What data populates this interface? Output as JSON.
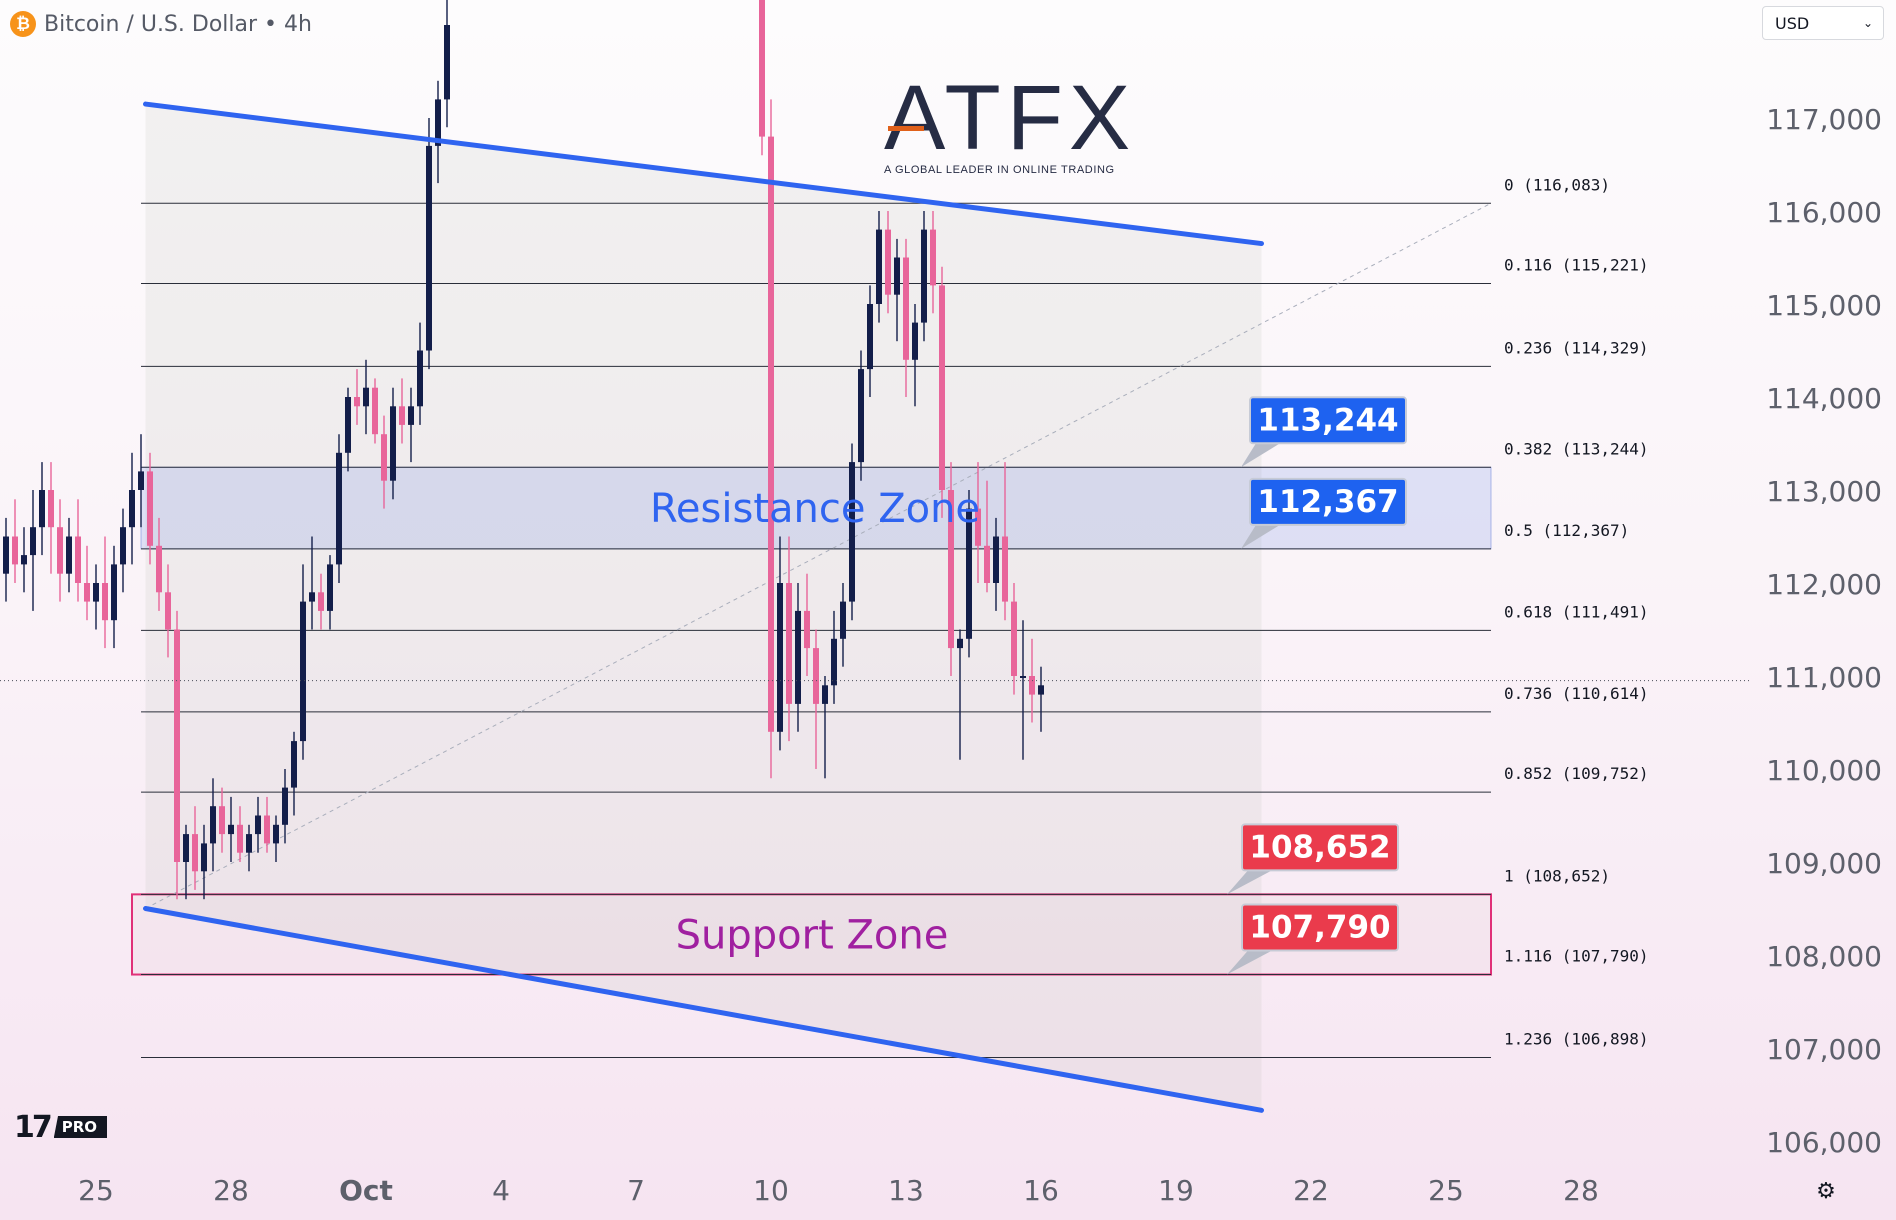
{
  "header": {
    "icon": "bitcoin-icon",
    "symbol_title": "Bitcoin / U.S. Dollar • 4h"
  },
  "currency_select": {
    "value": "USD"
  },
  "branding": {
    "logo_text": "ATFX",
    "logo_tagline": "A GLOBAL LEADER IN ONLINE TRADING",
    "tradingview_badge": "PRO"
  },
  "icons": {
    "settings": "gear-icon",
    "dropdown": "chevron-down-icon"
  },
  "colors": {
    "bull": "#131e4a",
    "bear": "#e8659a",
    "channel": "#2f64f0",
    "resistance_text": "#2f64f0",
    "support_text": "#a020a0",
    "support_border": "#e03078",
    "badge_blue": "#1e62f0",
    "badge_red": "#ea3b4c"
  },
  "chart_data": {
    "type": "candlestick",
    "title": "Bitcoin / U.S. Dollar • 4h",
    "ylim": [
      105400,
      118300
    ],
    "xlim": [
      22.8,
      29.5
    ],
    "y_ticks": [
      "117,000",
      "116,000",
      "115,000",
      "114,000",
      "113,000",
      "112,000",
      "111,000",
      "110,000",
      "109,000",
      "108,000",
      "107,000",
      "106,000"
    ],
    "y_tick_values": [
      117000,
      116000,
      115000,
      114000,
      113000,
      112000,
      111000,
      110000,
      109000,
      108000,
      107000,
      106000
    ],
    "x_ticks": [
      {
        "label": "25",
        "t": 25
      },
      {
        "label": "28",
        "t": 28
      },
      {
        "label": "Oct",
        "t": 31
      },
      {
        "label": "4",
        "t": 34
      },
      {
        "label": "7",
        "t": 37
      },
      {
        "label": "10",
        "t": 40
      },
      {
        "label": "13",
        "t": 43
      },
      {
        "label": "16",
        "t": 46
      },
      {
        "label": "19",
        "t": 49
      },
      {
        "label": "22",
        "t": 52
      },
      {
        "label": "25",
        "t": 55
      },
      {
        "label": "28",
        "t": 58
      }
    ],
    "current_price_line": 110950,
    "fibonacci": {
      "start_t": 26.0,
      "end_t": 56.0,
      "levels": [
        {
          "label": "0 (116,083)",
          "price": 116083
        },
        {
          "label": "0.116 (115,221)",
          "price": 115221
        },
        {
          "label": "0.236 (114,329)",
          "price": 114329
        },
        {
          "label": "0.382 (113,244)",
          "price": 113244
        },
        {
          "label": "0.5 (112,367)",
          "price": 112367
        },
        {
          "label": "0.618 (111,491)",
          "price": 111491
        },
        {
          "label": "0.736 (110,614)",
          "price": 110614
        },
        {
          "label": "0.852 (109,752)",
          "price": 109752
        },
        {
          "label": "1 (108,652)",
          "price": 108652
        },
        {
          "label": "1.116 (107,790)",
          "price": 107790
        },
        {
          "label": "1.236 (106,898)",
          "price": 106898
        }
      ]
    },
    "trend_lines": [
      {
        "t1": 26.1,
        "p1": 117150,
        "t2": 50.9,
        "p2": 115650
      },
      {
        "t1": 26.1,
        "p1": 108500,
        "t2": 50.9,
        "p2": 106330
      }
    ],
    "channel_fill": {
      "t1": 26.1,
      "t2": 50.9
    },
    "diagonal": {
      "t1": 26.1,
      "p1": 108500,
      "t2": 56.0,
      "p2": 116083
    },
    "zones": [
      {
        "name": "Resistance Zone",
        "top": 113244,
        "bottom": 112367,
        "t1": 26.0,
        "t2": 56.0
      },
      {
        "name": "Support Zone",
        "top": 108652,
        "bottom": 107790,
        "t1": 25.8,
        "t2": 56.0
      }
    ],
    "callouts": [
      {
        "label": "113,244",
        "price": 113244,
        "style": "blue"
      },
      {
        "label": "112,367",
        "price": 112367,
        "style": "blue"
      },
      {
        "label": "108,652",
        "price": 108652,
        "style": "red"
      },
      {
        "label": "107,790",
        "price": 107790,
        "style": "red"
      }
    ],
    "candles": [
      {
        "t": 23.0,
        "o": 112100,
        "h": 112700,
        "l": 111800,
        "c": 112500
      },
      {
        "t": 23.2,
        "o": 112500,
        "h": 112900,
        "l": 112000,
        "c": 112200
      },
      {
        "t": 23.4,
        "o": 112200,
        "h": 112600,
        "l": 111900,
        "c": 112300
      },
      {
        "t": 23.6,
        "o": 112300,
        "h": 113000,
        "l": 111700,
        "c": 112600
      },
      {
        "t": 23.8,
        "o": 112600,
        "h": 113300,
        "l": 112300,
        "c": 113000
      },
      {
        "t": 24.0,
        "o": 113000,
        "h": 113300,
        "l": 112100,
        "c": 112600
      },
      {
        "t": 24.2,
        "o": 112600,
        "h": 112900,
        "l": 111800,
        "c": 112100
      },
      {
        "t": 24.4,
        "o": 112100,
        "h": 112700,
        "l": 111900,
        "c": 112500
      },
      {
        "t": 24.6,
        "o": 112500,
        "h": 112900,
        "l": 111800,
        "c": 112000
      },
      {
        "t": 24.8,
        "o": 112000,
        "h": 112400,
        "l": 111600,
        "c": 111800
      },
      {
        "t": 25.0,
        "o": 111800,
        "h": 112200,
        "l": 111500,
        "c": 112000
      },
      {
        "t": 25.2,
        "o": 112000,
        "h": 112500,
        "l": 111300,
        "c": 111600
      },
      {
        "t": 25.4,
        "o": 111600,
        "h": 112400,
        "l": 111300,
        "c": 112200
      },
      {
        "t": 25.6,
        "o": 112200,
        "h": 112800,
        "l": 111900,
        "c": 112600
      },
      {
        "t": 25.8,
        "o": 112600,
        "h": 113400,
        "l": 112200,
        "c": 113000
      },
      {
        "t": 26.0,
        "o": 113000,
        "h": 113600,
        "l": 112600,
        "c": 113200
      },
      {
        "t": 26.2,
        "o": 113200,
        "h": 113400,
        "l": 112200,
        "c": 112400
      },
      {
        "t": 26.4,
        "o": 112400,
        "h": 112700,
        "l": 111700,
        "c": 111900
      },
      {
        "t": 26.6,
        "o": 111900,
        "h": 112200,
        "l": 111200,
        "c": 111500
      },
      {
        "t": 26.8,
        "o": 111500,
        "h": 111700,
        "l": 108600,
        "c": 109000
      },
      {
        "t": 27.0,
        "o": 109000,
        "h": 109400,
        "l": 108600,
        "c": 109300
      },
      {
        "t": 27.2,
        "o": 109300,
        "h": 109600,
        "l": 108700,
        "c": 108900
      },
      {
        "t": 27.4,
        "o": 108900,
        "h": 109400,
        "l": 108600,
        "c": 109200
      },
      {
        "t": 27.6,
        "o": 109200,
        "h": 109900,
        "l": 108900,
        "c": 109600
      },
      {
        "t": 27.8,
        "o": 109600,
        "h": 109800,
        "l": 109100,
        "c": 109300
      },
      {
        "t": 28.0,
        "o": 109300,
        "h": 109700,
        "l": 109000,
        "c": 109400
      },
      {
        "t": 28.2,
        "o": 109400,
        "h": 109600,
        "l": 109000,
        "c": 109100
      },
      {
        "t": 28.4,
        "o": 109100,
        "h": 109400,
        "l": 108900,
        "c": 109300
      },
      {
        "t": 28.6,
        "o": 109300,
        "h": 109700,
        "l": 109100,
        "c": 109500
      },
      {
        "t": 28.8,
        "o": 109500,
        "h": 109700,
        "l": 109100,
        "c": 109200
      },
      {
        "t": 29.0,
        "o": 109200,
        "h": 109500,
        "l": 109000,
        "c": 109400
      },
      {
        "t": 29.2,
        "o": 109400,
        "h": 110000,
        "l": 109200,
        "c": 109800
      },
      {
        "t": 29.4,
        "o": 109800,
        "h": 110400,
        "l": 109500,
        "c": 110300
      },
      {
        "t": 29.6,
        "o": 110300,
        "h": 112200,
        "l": 110100,
        "c": 111800
      },
      {
        "t": 29.8,
        "o": 111800,
        "h": 112500,
        "l": 111500,
        "c": 111900
      },
      {
        "t": 30.0,
        "o": 111900,
        "h": 112100,
        "l": 111500,
        "c": 111700
      },
      {
        "t": 30.2,
        "o": 111700,
        "h": 112300,
        "l": 111500,
        "c": 112200
      },
      {
        "t": 30.4,
        "o": 112200,
        "h": 113600,
        "l": 112000,
        "c": 113400
      },
      {
        "t": 30.6,
        "o": 113400,
        "h": 114100,
        "l": 113200,
        "c": 114000
      },
      {
        "t": 30.8,
        "o": 114000,
        "h": 114300,
        "l": 113700,
        "c": 113900
      },
      {
        "t": 31.0,
        "o": 113900,
        "h": 114400,
        "l": 113600,
        "c": 114100
      },
      {
        "t": 31.2,
        "o": 114100,
        "h": 114200,
        "l": 113500,
        "c": 113600
      },
      {
        "t": 31.4,
        "o": 113600,
        "h": 113800,
        "l": 112800,
        "c": 113100
      },
      {
        "t": 31.6,
        "o": 113100,
        "h": 114100,
        "l": 112900,
        "c": 113900
      },
      {
        "t": 31.8,
        "o": 113900,
        "h": 114200,
        "l": 113500,
        "c": 113700
      },
      {
        "t": 32.0,
        "o": 113700,
        "h": 114100,
        "l": 113300,
        "c": 113900
      },
      {
        "t": 32.2,
        "o": 113900,
        "h": 114800,
        "l": 113700,
        "c": 114500
      },
      {
        "t": 32.4,
        "o": 114500,
        "h": 117000,
        "l": 114300,
        "c": 116700
      },
      {
        "t": 32.6,
        "o": 116700,
        "h": 117400,
        "l": 116300,
        "c": 117200
      },
      {
        "t": 32.8,
        "o": 117200,
        "h": 118300,
        "l": 116900,
        "c": 118000
      },
      {
        "t": 39.8,
        "o": 118300,
        "h": 118300,
        "l": 116600,
        "c": 116800
      },
      {
        "t": 40.0,
        "o": 116800,
        "h": 117200,
        "l": 109900,
        "c": 110400
      },
      {
        "t": 40.2,
        "o": 110400,
        "h": 112500,
        "l": 110200,
        "c": 112000
      },
      {
        "t": 40.4,
        "o": 112000,
        "h": 112500,
        "l": 110300,
        "c": 110700
      },
      {
        "t": 40.6,
        "o": 110700,
        "h": 112000,
        "l": 110400,
        "c": 111700
      },
      {
        "t": 40.8,
        "o": 111700,
        "h": 112100,
        "l": 111000,
        "c": 111300
      },
      {
        "t": 41.0,
        "o": 111300,
        "h": 111500,
        "l": 110000,
        "c": 110700
      },
      {
        "t": 41.2,
        "o": 110700,
        "h": 111000,
        "l": 109900,
        "c": 110900
      },
      {
        "t": 41.4,
        "o": 110900,
        "h": 111700,
        "l": 110700,
        "c": 111400
      },
      {
        "t": 41.6,
        "o": 111400,
        "h": 112000,
        "l": 111100,
        "c": 111800
      },
      {
        "t": 41.8,
        "o": 111800,
        "h": 113500,
        "l": 111600,
        "c": 113300
      },
      {
        "t": 42.0,
        "o": 113300,
        "h": 114500,
        "l": 113100,
        "c": 114300
      },
      {
        "t": 42.2,
        "o": 114300,
        "h": 115200,
        "l": 114000,
        "c": 115000
      },
      {
        "t": 42.4,
        "o": 115000,
        "h": 116000,
        "l": 114800,
        "c": 115800
      },
      {
        "t": 42.6,
        "o": 115800,
        "h": 116000,
        "l": 114900,
        "c": 115100
      },
      {
        "t": 42.8,
        "o": 115100,
        "h": 115700,
        "l": 114600,
        "c": 115500
      },
      {
        "t": 43.0,
        "o": 115500,
        "h": 115700,
        "l": 114000,
        "c": 114400
      },
      {
        "t": 43.2,
        "o": 114400,
        "h": 115000,
        "l": 113900,
        "c": 114800
      },
      {
        "t": 43.4,
        "o": 114800,
        "h": 116000,
        "l": 114600,
        "c": 115800
      },
      {
        "t": 43.6,
        "o": 115800,
        "h": 116000,
        "l": 114900,
        "c": 115200
      },
      {
        "t": 43.8,
        "o": 115200,
        "h": 115400,
        "l": 112700,
        "c": 113000
      },
      {
        "t": 44.0,
        "o": 113000,
        "h": 113300,
        "l": 111000,
        "c": 111300
      },
      {
        "t": 44.2,
        "o": 111300,
        "h": 111500,
        "l": 110100,
        "c": 111400
      },
      {
        "t": 44.4,
        "o": 111400,
        "h": 113000,
        "l": 111200,
        "c": 112800
      },
      {
        "t": 44.6,
        "o": 112800,
        "h": 113300,
        "l": 112000,
        "c": 112400
      },
      {
        "t": 44.8,
        "o": 112400,
        "h": 113100,
        "l": 111900,
        "c": 112000
      },
      {
        "t": 45.0,
        "o": 112000,
        "h": 112700,
        "l": 111700,
        "c": 112500
      },
      {
        "t": 45.2,
        "o": 112500,
        "h": 113300,
        "l": 111600,
        "c": 111800
      },
      {
        "t": 45.4,
        "o": 111800,
        "h": 112000,
        "l": 110800,
        "c": 111000
      },
      {
        "t": 45.6,
        "o": 111000,
        "h": 111600,
        "l": 110100,
        "c": 111000
      },
      {
        "t": 45.8,
        "o": 111000,
        "h": 111400,
        "l": 110500,
        "c": 110800
      },
      {
        "t": 46.0,
        "o": 110800,
        "h": 111100,
        "l": 110400,
        "c": 110900
      }
    ]
  }
}
